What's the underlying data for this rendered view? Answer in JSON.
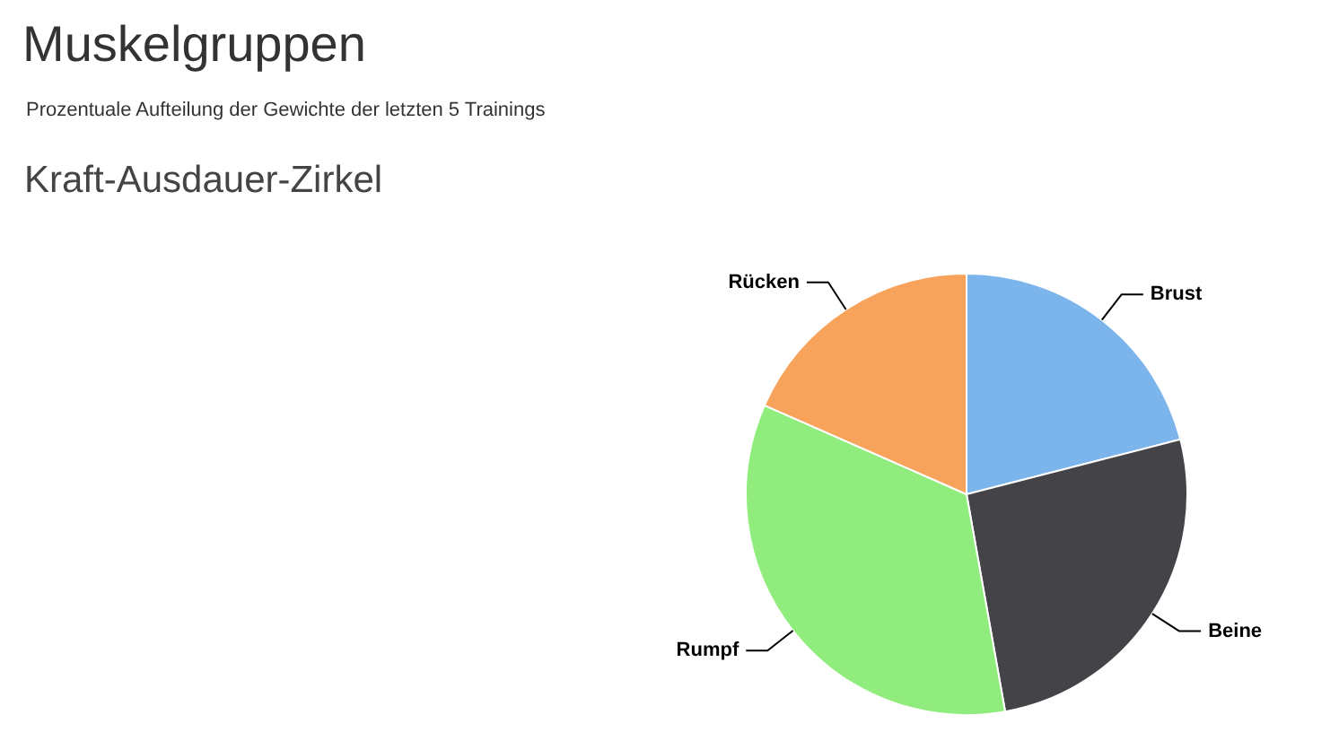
{
  "chart_data": {
    "type": "pie",
    "title": "Muskelgruppen",
    "subtitle": "Prozentuale Aufteilung der Gewichte der letzten 5 Trainings",
    "annotations": [
      "Kraft-Ausdauer-Zirkel"
    ],
    "categories": [
      "Brust",
      "Beine",
      "Rumpf",
      "Rücken"
    ],
    "values": [
      21,
      26.2,
      34.4,
      18.4
    ],
    "colors": [
      "#7cb5ec",
      "#434348",
      "#90ed7d",
      "#f7a35c"
    ]
  }
}
